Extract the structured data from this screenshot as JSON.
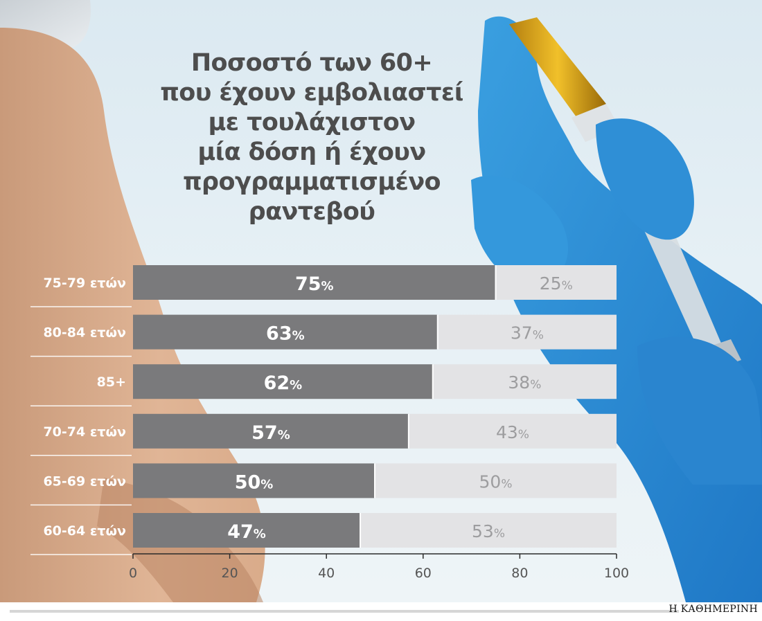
{
  "title_lines": [
    "Ποσοστό των 60+",
    "που έχουν εμβολιαστεί",
    "με τουλάχιστον",
    "μία δόση ή έχουν",
    "προγραμματισμένο",
    "ραντεβού"
  ],
  "brand": "Η ΚΑΘΗΜΕΡΙΝΗ",
  "colors": {
    "vaccinated": "#7a7a7c",
    "remaining": "#e3e3e5",
    "vaccinated_label": "#ffffff",
    "remaining_label": "#9d9d9f"
  },
  "chart_data": {
    "type": "bar",
    "orientation": "horizontal",
    "stacked": true,
    "categories": [
      "75-79 ετών",
      "80-84 ετών",
      "85+",
      "70-74 ετών",
      "65-69 ετών",
      "60-64 ετών"
    ],
    "series": [
      {
        "values": [
          75,
          63,
          62,
          57,
          50,
          47
        ]
      },
      {
        "values": [
          25,
          37,
          38,
          43,
          50,
          53
        ]
      }
    ],
    "data_labels": [
      [
        "75",
        "63",
        "62",
        "57",
        "50",
        "47"
      ],
      [
        "25",
        "37",
        "38",
        "43",
        "50",
        "53"
      ]
    ],
    "unit_symbol": "%",
    "xlim": [
      0,
      100
    ],
    "xticks": [
      "0",
      "20",
      "40",
      "60",
      "80",
      "100"
    ],
    "grid": false,
    "legend": "none"
  }
}
